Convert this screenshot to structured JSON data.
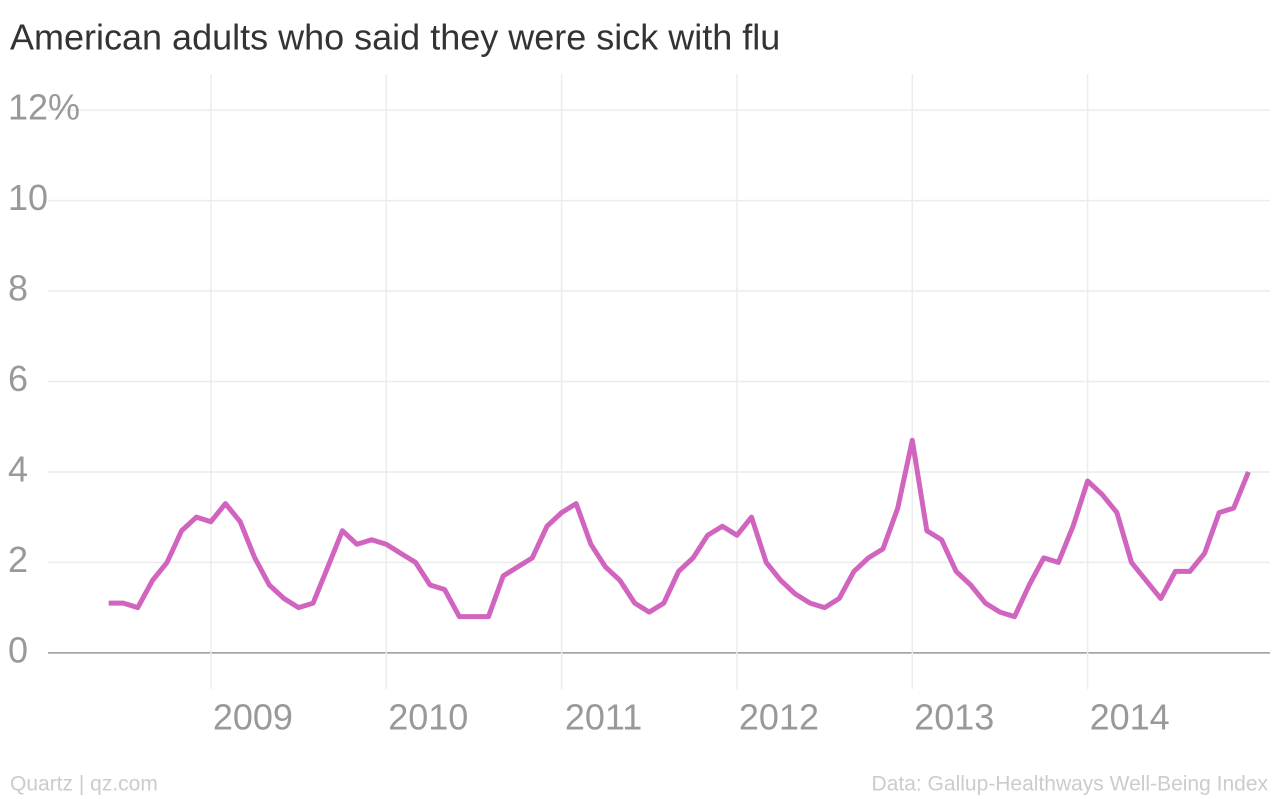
{
  "chart_data": {
    "type": "line",
    "title": "American adults who said they were sick with flu",
    "source": "Data: Gallup-Healthways Well-Being Index",
    "credit": "Quartz | qz.com",
    "x": [
      2008.417,
      2008.5,
      2008.583,
      2008.667,
      2008.75,
      2008.833,
      2008.917,
      2009,
      2009.083,
      2009.167,
      2009.25,
      2009.333,
      2009.417,
      2009.5,
      2009.583,
      2009.667,
      2009.75,
      2009.833,
      2009.917,
      2010,
      2010.083,
      2010.167,
      2010.25,
      2010.333,
      2010.417,
      2010.5,
      2010.583,
      2010.667,
      2010.75,
      2010.833,
      2010.917,
      2011,
      2011.083,
      2011.167,
      2011.25,
      2011.333,
      2011.417,
      2011.5,
      2011.583,
      2011.667,
      2011.75,
      2011.833,
      2011.917,
      2012,
      2012.083,
      2012.167,
      2012.25,
      2012.333,
      2012.417,
      2012.5,
      2012.583,
      2012.667,
      2012.75,
      2012.833,
      2012.917,
      2013,
      2013.083,
      2013.167,
      2013.25,
      2013.333,
      2013.417,
      2013.5,
      2013.583,
      2013.667,
      2013.75,
      2013.833,
      2013.917,
      2014,
      2014.083,
      2014.167,
      2014.25,
      2014.333,
      2014.417,
      2014.5,
      2014.583,
      2014.667,
      2014.75,
      2014.833,
      2014.917
    ],
    "series": [
      {
        "name": "Sick with flu",
        "color": "#d064bf",
        "values": [
          1.1,
          1.1,
          1.0,
          1.6,
          2.0,
          2.7,
          3.0,
          2.9,
          3.3,
          2.9,
          2.1,
          1.5,
          1.2,
          1.0,
          1.1,
          1.9,
          2.7,
          2.4,
          2.5,
          2.4,
          2.2,
          2.0,
          1.5,
          1.4,
          0.8,
          0.8,
          0.8,
          1.7,
          1.9,
          2.1,
          2.8,
          3.1,
          3.3,
          2.4,
          1.9,
          1.6,
          1.1,
          0.9,
          1.1,
          1.8,
          2.1,
          2.6,
          2.8,
          2.6,
          3.0,
          2.0,
          1.6,
          1.3,
          1.1,
          1.0,
          1.2,
          1.8,
          2.1,
          2.3,
          3.2,
          4.7,
          2.7,
          2.5,
          1.8,
          1.5,
          1.1,
          0.9,
          0.8,
          1.5,
          2.1,
          2.0,
          2.8,
          3.8,
          3.5,
          3.1,
          2.0,
          1.6,
          1.2,
          1.8,
          1.8,
          2.2,
          3.1,
          3.2,
          4.0
        ]
      }
    ],
    "xlim": [
      2008.071,
      2015.04
    ],
    "xticks": [
      2009,
      2010,
      2011,
      2012,
      2013,
      2014
    ],
    "ylim": [
      -0.8,
      12.8
    ],
    "yticks": [
      0,
      2,
      4,
      6,
      8,
      10,
      {
        "value": 12,
        "label": "12%"
      }
    ],
    "grid": true
  }
}
